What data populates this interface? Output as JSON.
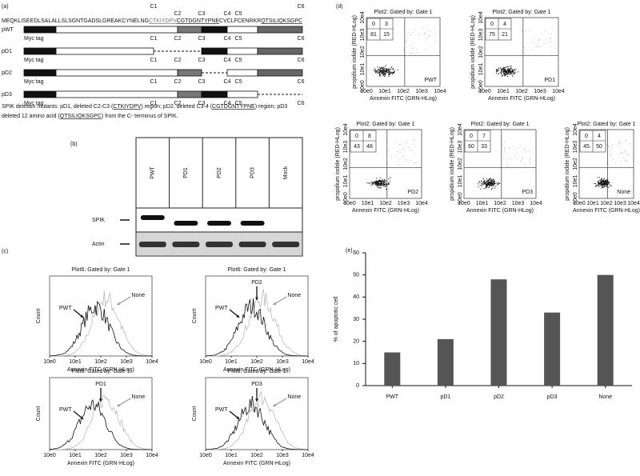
{
  "panel_a": {
    "label": "(a)",
    "cys_labels": [
      "C1",
      "C2",
      "C3",
      "C4",
      "C5",
      "C6"
    ],
    "sequence": [
      "MEQKLISEEDLSALALLSLSGNTGADSLGREAKCYNELNG",
      "CTKIYDPV",
      "CGTDGNTYPNE",
      "CVCLFCENRKR",
      "QTSILIQKSGPC"
    ],
    "constructs": [
      {
        "name": "pWT",
        "tag": "Myc tag",
        "cys": [
          "C1",
          "C2",
          "C3",
          "C4",
          "C5",
          "C6"
        ]
      },
      {
        "name": "pD1",
        "tag": "Myc tag",
        "cys": [
          "C1",
          "C2",
          "C3",
          "C4",
          "C5",
          "C6"
        ]
      },
      {
        "name": "pD2",
        "tag": "Myc tag",
        "cys": [
          "C1",
          "C2",
          "C3",
          "C4",
          "C5",
          "C6"
        ]
      },
      {
        "name": "pD3",
        "tag": "Myc tag",
        "cys": [
          "C1",
          "C2",
          "C3",
          "C4",
          "C5",
          "C6"
        ]
      }
    ],
    "caption": {
      "line1": [
        "SPIK deletion mutants: pD1, deleted C2-C3 (",
        "CTKIYDPV",
        ") region; pD2, deleted C3-4 (",
        "CGTDGNTYPNE",
        ") region; pD3"
      ],
      "line2": [
        "deleted 12 amino acid (",
        "QTSILIQKSGPC",
        ") from the C- terminus of SPIK."
      ]
    }
  },
  "panel_b": {
    "label": "(b)",
    "lanes": [
      "PWT",
      "PD1",
      "PD2",
      "PD3",
      "Mock"
    ],
    "rows": [
      "SPIK",
      "Actin"
    ]
  },
  "panel_c": {
    "label": "(c)",
    "plots": [
      {
        "title": "Plot6: Gated by: Gate 1",
        "ylabel": "Count",
        "xlabel": "Annexin FITC (GRN-HLog)",
        "xticks": [
          "10e0",
          "10e1",
          "10e2",
          "10e3",
          "10e4"
        ],
        "annotations": [
          "PWT",
          "None"
        ]
      },
      {
        "title": "Plot6: Gated by: Gate 1",
        "ylabel": "Count",
        "xlabel": "Annexin FITC (GRN-HLog)",
        "xticks": [
          "10e0",
          "10e1",
          "10e2",
          "10e3",
          "10e4"
        ],
        "annotations": [
          "PWT",
          "PD2",
          "None"
        ]
      },
      {
        "title": "Plot6: Gated by: Gate 1",
        "ylabel": "Count",
        "xlabel": "Annexin FITC (GRN-HLog)",
        "xticks": [
          "10e0",
          "10e1",
          "10e2",
          "10e3",
          "10e4"
        ],
        "annotations": [
          "PWT",
          "PD1",
          "None"
        ]
      },
      {
        "title": "Plot6: Gated by: Gate 1",
        "ylabel": "Count",
        "xlabel": "Annexin FITC (GRN-HLog)",
        "xticks": [
          "10e0",
          "10e1",
          "10e2",
          "10e3",
          "10e4"
        ],
        "annotations": [
          "PWT",
          "PD3",
          "None"
        ]
      }
    ]
  },
  "panel_d": {
    "label": "(d)",
    "plots": [
      {
        "title": "Plot2: Gated by: Gate 1",
        "ylabel": "propidium iodide (RED-HLog)",
        "xlabel": "Annexin FITC (GRN-HLog)",
        "xticks": [
          "10e0",
          "10e1",
          "10e2",
          "10e3",
          "10e4"
        ],
        "yticks": [
          "10e0",
          "10e1",
          "10e2",
          "10e3",
          "10e4"
        ],
        "quadrants": [
          0,
          3,
          81,
          15
        ],
        "name": "PWT"
      },
      {
        "title": "Plot2: Gated by: Gate 1",
        "ylabel": "propidium iodide (RED-HLog)",
        "xlabel": "Annexin FITC (GRN-HLog)",
        "xticks": [
          "10e0",
          "10e1",
          "10e2",
          "10e3",
          "10e4"
        ],
        "yticks": [
          "10e0",
          "10e1",
          "10e2",
          "10e3",
          "10e4"
        ],
        "quadrants": [
          0,
          4,
          75,
          21
        ],
        "name": "PD1"
      },
      {
        "title": "Plot2: Gated by: Gate 1",
        "ylabel": "propidium iodide (RED-HLog)",
        "xlabel": "Annexin FITC (GRN-HLog)",
        "xticks": [
          "10e0",
          "10e1",
          "10e2",
          "10e3",
          "10e4"
        ],
        "yticks": [
          "10e0",
          "10e1",
          "10e2",
          "10e3",
          "10e4"
        ],
        "quadrants": [
          0,
          8,
          43,
          48
        ],
        "name": "PD2"
      },
      {
        "title": "Plot2: Gated by: Gate 1",
        "ylabel": "propidium iodide (RED-HLog)",
        "xlabel": "Annexin FITC (GRN-HLog)",
        "xticks": [
          "10e0",
          "10e1",
          "10e2",
          "10e3",
          "10e4"
        ],
        "yticks": [
          "10e0",
          "10e1",
          "10e2",
          "10e3",
          "10e4"
        ],
        "quadrants": [
          0,
          7,
          60,
          33
        ],
        "name": "PD3"
      },
      {
        "title": "Plot2: Gated by: Gate 1",
        "ylabel": "propidium iodide (RED-HLog)",
        "xlabel": "Annexin FITC (GRN-HLog)",
        "xticks": [
          "10e0",
          "10e1",
          "10e2",
          "10e3",
          "10e4"
        ],
        "yticks": [
          "10e0",
          "10e1",
          "10e2",
          "10e3",
          "10e4"
        ],
        "quadrants": [
          0,
          4,
          45,
          50
        ],
        "name": "None"
      }
    ]
  },
  "panel_e": {
    "label": "(e)"
  },
  "chart_data": {
    "type": "bar",
    "ylabel": "% of apoptotic cell",
    "categories": [
      "PWT",
      "pD1",
      "pD2",
      "pD3",
      "None"
    ],
    "values": [
      15,
      21,
      48,
      33,
      50
    ],
    "color": "#555555",
    "ylim": [
      0,
      60
    ],
    "yticks": [
      0,
      10,
      20,
      30,
      40,
      50,
      60
    ],
    "grid": false
  }
}
